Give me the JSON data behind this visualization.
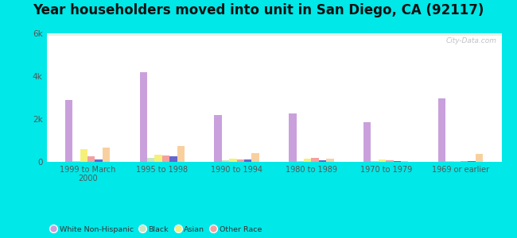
{
  "title": "Year householders moved into unit in San Diego, CA (92117)",
  "categories": [
    "1999 to March\n2000",
    "1995 to 1998",
    "1990 to 1994",
    "1980 to 1989",
    "1970 to 1979",
    "1969 or earlier"
  ],
  "series": {
    "White Non-Hispanic": [
      2900,
      4200,
      2200,
      2250,
      1850,
      2950
    ],
    "Black": [
      50,
      200,
      80,
      50,
      40,
      50
    ],
    "Asian": [
      600,
      350,
      150,
      150,
      100,
      50
    ],
    "Other Race": [
      250,
      300,
      100,
      180,
      80,
      50
    ],
    "Two or More Races": [
      100,
      250,
      100,
      80,
      30,
      50
    ],
    "Hispanic or Latino": [
      650,
      750,
      420,
      130,
      50,
      380
    ]
  },
  "colors": {
    "White Non-Hispanic": "#c9a0dc",
    "Black": "#c8e6c0",
    "Asian": "#f5f07a",
    "Other Race": "#f4a0a0",
    "Two or More Races": "#6666cc",
    "Hispanic or Latino": "#f8d0a0"
  },
  "ylim": [
    0,
    6000
  ],
  "yticks": [
    0,
    2000,
    4000,
    6000
  ],
  "ytick_labels": [
    "0",
    "2k",
    "4k",
    "6k"
  ],
  "background_color": "#00e8e8",
  "watermark": "City-Data.com",
  "bar_width": 0.1,
  "title_fontsize": 12
}
